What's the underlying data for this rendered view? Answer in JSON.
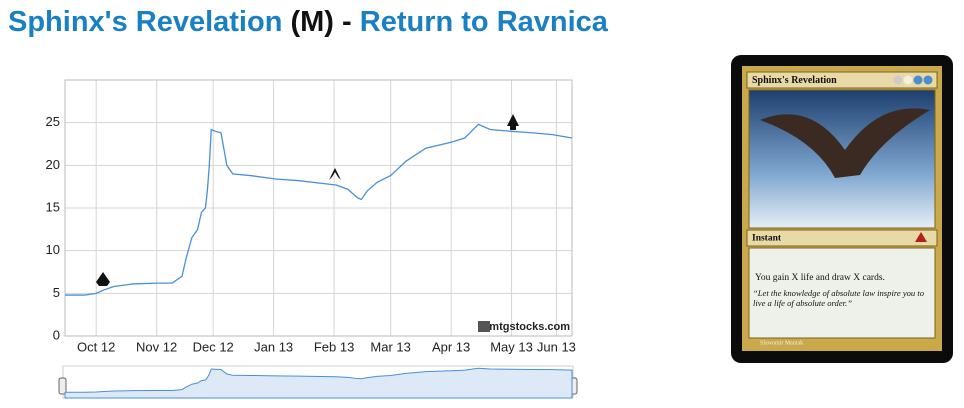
{
  "header": {
    "name": "Sphinx's Revelation",
    "rarity": "(M)",
    "separator": "-",
    "set": "Return to Ravnica"
  },
  "chart_data": {
    "type": "line",
    "watermark": "mtgstocks.com",
    "x": [
      0,
      10,
      16,
      20,
      25,
      35,
      47,
      55,
      60,
      62,
      65,
      68,
      70,
      72,
      73,
      74,
      75,
      77,
      80,
      83,
      86,
      95,
      108,
      120,
      135,
      139,
      145,
      150,
      152,
      155,
      160,
      167,
      175,
      185,
      198,
      205,
      212,
      218,
      228,
      240,
      250,
      260
    ],
    "series": [
      {
        "color": "#4a8fd8",
        "values": [
          4.8,
          4.8,
          5.0,
          5.4,
          5.8,
          6.1,
          6.2,
          6.2,
          7,
          9,
          11.5,
          12.5,
          14.5,
          15,
          17,
          20,
          24.2,
          24,
          23.8,
          20,
          19,
          18.8,
          18.4,
          18.2,
          17.8,
          17.7,
          17.2,
          16.2,
          16,
          17,
          18,
          18.8,
          20.5,
          22,
          22.7,
          23.2,
          24.8,
          24.2,
          24,
          23.8,
          23.6,
          23.2
        ]
      }
    ],
    "xlim": [
      0,
      260
    ],
    "xticks": [
      {
        "value": 16,
        "label": "Oct 12"
      },
      {
        "value": 47,
        "label": "Nov 12"
      },
      {
        "value": 76,
        "label": "Dec 12"
      },
      {
        "value": 107,
        "label": "Jan 13"
      },
      {
        "value": 138,
        "label": "Feb 13"
      },
      {
        "value": 167,
        "label": "Mar 13"
      },
      {
        "value": 198,
        "label": "Apr 13"
      },
      {
        "value": 229,
        "label": "May 13"
      },
      {
        "value": 252,
        "label": "Jun 13"
      }
    ],
    "ylim": [
      0,
      30
    ],
    "yticks": [
      0,
      5,
      10,
      15,
      20,
      25
    ],
    "grid": true
  },
  "card": {
    "name": "Sphinx's Revelation",
    "type_line": "Instant",
    "rules": "You gain X life and draw X cards.",
    "flavor": "“Let the knowledge of absolute law inspire you to live a life of absolute order.”",
    "artist": "Slawomir Maniak"
  }
}
